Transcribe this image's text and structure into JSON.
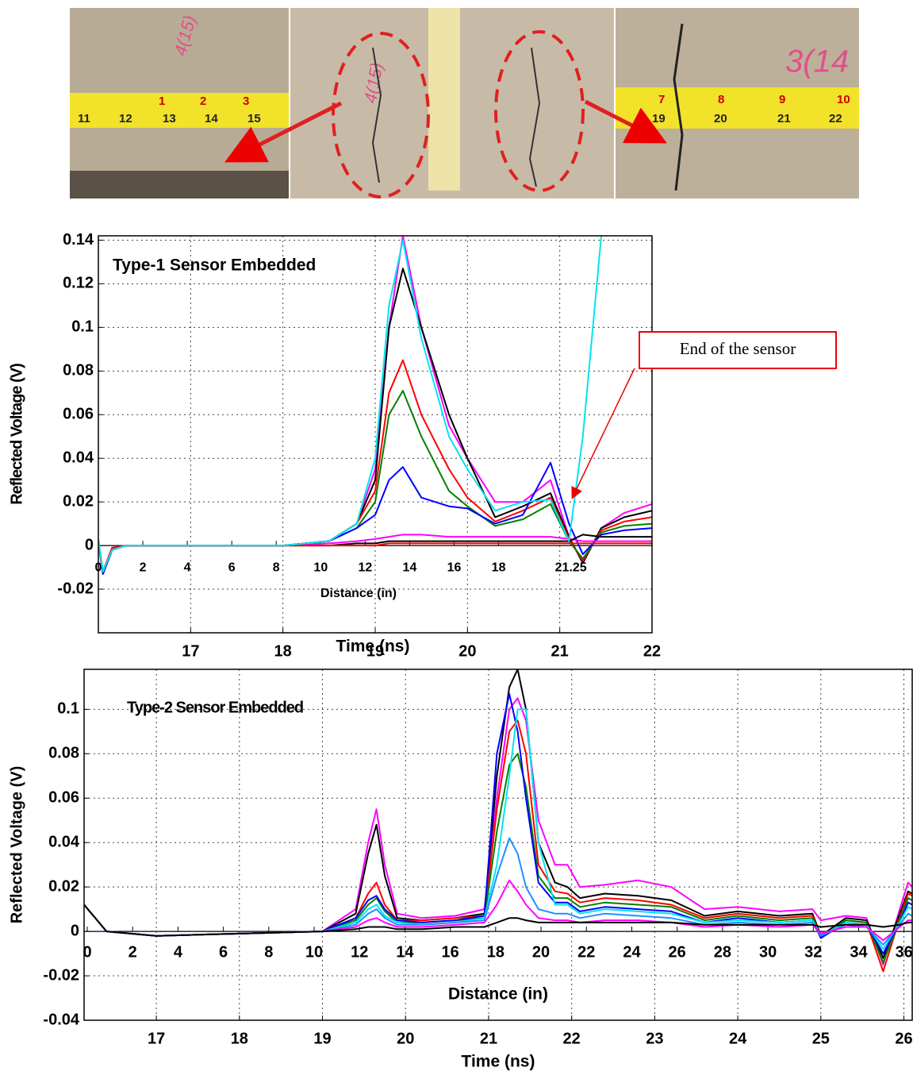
{
  "photo": {
    "left_tape": [
      "11",
      "12",
      "13",
      "14",
      "15"
    ],
    "left_tape_small": [
      "1",
      "2",
      "3"
    ],
    "left_mark": "4(15)",
    "middle_mark": "4(15)",
    "right_tape": [
      "19",
      "20",
      "21",
      "22"
    ],
    "right_tape_small": [
      "7",
      "8",
      "9",
      "10"
    ],
    "right_mark": "3(14"
  },
  "chart_data": [
    {
      "type": "line",
      "title": "Type-1 Sensor Embedded",
      "x_label": "Time (ns)",
      "y_label": "Reflected Voltage (V)",
      "x2_label": "Distance (in)",
      "annotation": "End of the sensor",
      "xlim": [
        16,
        22
      ],
      "xticks": [
        17,
        18,
        19,
        20,
        21,
        22
      ],
      "x2lim": [
        0,
        24.9
      ],
      "x2ticks": [
        0,
        2,
        4,
        6,
        8,
        10,
        12,
        14,
        16,
        18,
        21.25
      ],
      "ylim": [
        -0.04,
        0.142
      ],
      "yticks": [
        -0.02,
        0,
        0.02,
        0.04,
        0.06,
        0.08,
        0.1,
        0.12,
        0.14
      ],
      "grid": true,
      "x": [
        16.0,
        16.05,
        16.15,
        16.3,
        16.6,
        17.0,
        17.5,
        18.0,
        18.5,
        18.8,
        19.0,
        19.15,
        19.3,
        19.5,
        19.8,
        20.0,
        20.3,
        20.6,
        20.9,
        21.1,
        21.25,
        21.45,
        21.7,
        22.0
      ],
      "series": [
        {
          "color": "#ff00ff",
          "values": [
            0.002,
            -0.013,
            -0.002,
            0,
            0,
            0,
            0,
            0,
            0.002,
            0.01,
            0.035,
            0.1,
            0.142,
            0.1,
            0.055,
            0.04,
            0.02,
            0.02,
            0.03,
            0.004,
            -0.008,
            0.008,
            0.015,
            0.019
          ]
        },
        {
          "color": "#000000",
          "values": [
            0.002,
            -0.013,
            -0.002,
            0,
            0,
            0,
            0,
            0,
            0.002,
            0.01,
            0.03,
            0.1,
            0.127,
            0.1,
            0.06,
            0.04,
            0.013,
            0.018,
            0.024,
            0.004,
            -0.008,
            0.008,
            0.013,
            0.016
          ]
        },
        {
          "color": "#ff0000",
          "values": [
            0.002,
            -0.013,
            -0.002,
            0,
            0,
            0,
            0,
            0,
            0.002,
            0.01,
            0.025,
            0.07,
            0.085,
            0.06,
            0.035,
            0.022,
            0.011,
            0.016,
            0.022,
            0.003,
            -0.007,
            0.007,
            0.011,
            0.013
          ]
        },
        {
          "color": "#008000",
          "values": [
            0.002,
            -0.013,
            -0.002,
            0,
            0,
            0,
            0,
            0,
            0.002,
            0.008,
            0.02,
            0.06,
            0.071,
            0.05,
            0.025,
            0.018,
            0.009,
            0.012,
            0.019,
            0.002,
            -0.006,
            0.006,
            0.009,
            0.01
          ]
        },
        {
          "color": "#0000ff",
          "values": [
            0.002,
            -0.013,
            -0.002,
            0,
            0,
            0,
            0,
            0,
            0.002,
            0.008,
            0.014,
            0.03,
            0.036,
            0.022,
            0.018,
            0.017,
            0.01,
            0.014,
            0.038,
            0.01,
            -0.004,
            0.005,
            0.007,
            0.008
          ]
        },
        {
          "color": "#ff00ff",
          "values": [
            0.002,
            -0.012,
            -0.001,
            0,
            0,
            0,
            0,
            0,
            0.001,
            0.002,
            0.003,
            0.004,
            0.005,
            0.005,
            0.004,
            0.004,
            0.004,
            0.004,
            0.004,
            0.003,
            0.002,
            0.002,
            0.002,
            0.002
          ]
        },
        {
          "color": "#000000",
          "values": [
            0.002,
            -0.012,
            -0.001,
            0,
            0,
            0,
            0,
            0,
            0,
            0.001,
            0.001,
            0.002,
            0.002,
            0.002,
            0.002,
            0.002,
            0.002,
            0.002,
            0.002,
            0.002,
            0.005,
            0.004,
            0.004,
            0.004
          ]
        },
        {
          "color": "#ff0000",
          "values": [
            0.001,
            -0.012,
            -0.001,
            0,
            0,
            0,
            0,
            0,
            0,
            0,
            0,
            0.001,
            0.001,
            0.001,
            0.001,
            0.001,
            0.001,
            0.001,
            0.001,
            0.001,
            0.001,
            0.001,
            0.001,
            0.001
          ]
        },
        {
          "color": "#00e5ee",
          "values": [
            0.003,
            -0.012,
            -0.002,
            0,
            0,
            0,
            0,
            0,
            0.002,
            0.01,
            0.04,
            0.11,
            0.14,
            0.095,
            0.05,
            0.035,
            0.016,
            0.02,
            0.021,
            0.002,
            0.05,
            0.142,
            null,
            null
          ]
        }
      ]
    },
    {
      "type": "line",
      "title": "Type-2 Sensor Embedded",
      "x_label": "Time (ns)",
      "y_label": "Reflected Voltage (V)",
      "x2_label": "Distance (in)",
      "xlim": [
        16.13,
        26.1
      ],
      "xticks": [
        17,
        18,
        19,
        20,
        21,
        22,
        23,
        24,
        25,
        26
      ],
      "x2lim": [
        -0.14,
        36.36
      ],
      "x2ticks": [
        0,
        2,
        4,
        6,
        8,
        10,
        12,
        14,
        16,
        18,
        20,
        22,
        24,
        26,
        28,
        30,
        32,
        34,
        36
      ],
      "ylim": [
        -0.04,
        0.118
      ],
      "yticks": [
        -0.04,
        -0.02,
        0,
        0.02,
        0.04,
        0.06,
        0.08,
        0.1
      ],
      "grid": true,
      "x": [
        16.13,
        16.4,
        17,
        18,
        19,
        19.4,
        19.55,
        19.65,
        19.75,
        19.9,
        20.2,
        20.6,
        20.95,
        21.1,
        21.25,
        21.35,
        21.45,
        21.6,
        21.8,
        21.95,
        22.1,
        22.4,
        22.8,
        23.2,
        23.6,
        24.0,
        24.5,
        24.9,
        25.0,
        25.3,
        25.55,
        25.75,
        25.95,
        26.05,
        26.1
      ],
      "series": [
        {
          "color": "#ff00ff",
          "values": [
            0.012,
            0,
            -0.002,
            -0.001,
            0,
            0.01,
            0.04,
            0.055,
            0.03,
            0.008,
            0.006,
            0.007,
            0.01,
            0.06,
            0.1,
            0.105,
            0.095,
            0.05,
            0.03,
            0.03,
            0.02,
            0.021,
            0.023,
            0.02,
            0.01,
            0.011,
            0.009,
            0.01,
            0.005,
            0.007,
            0.006,
            -0.015,
            0.01,
            0.022,
            0.02
          ]
        },
        {
          "color": "#000000",
          "values": [
            0.012,
            0,
            -0.002,
            -0.001,
            0,
            0.008,
            0.035,
            0.048,
            0.025,
            0.006,
            0.005,
            0.006,
            0.008,
            0.07,
            0.11,
            0.118,
            0.1,
            0.04,
            0.022,
            0.02,
            0.015,
            0.017,
            0.016,
            0.014,
            0.007,
            0.009,
            0.007,
            0.008,
            -0.002,
            0.006,
            0.005,
            -0.012,
            0.008,
            0.018,
            0.017
          ]
        },
        {
          "color": "#ff0000",
          "values": [
            0.012,
            0,
            -0.002,
            -0.001,
            0,
            0.006,
            0.017,
            0.022,
            0.012,
            0.005,
            0.005,
            0.006,
            0.007,
            0.055,
            0.09,
            0.095,
            0.08,
            0.03,
            0.018,
            0.017,
            0.013,
            0.015,
            0.014,
            0.012,
            0.006,
            0.008,
            0.006,
            0.007,
            -0.003,
            0.005,
            0.004,
            -0.018,
            0.006,
            0.017,
            0.016
          ]
        },
        {
          "color": "#008000",
          "values": [
            0.012,
            0,
            -0.002,
            -0.001,
            0,
            0.005,
            0.012,
            0.015,
            0.009,
            0.004,
            0.004,
            0.005,
            0.006,
            0.045,
            0.075,
            0.08,
            0.065,
            0.025,
            0.015,
            0.015,
            0.011,
            0.013,
            0.012,
            0.011,
            0.005,
            0.007,
            0.005,
            0.006,
            -0.003,
            0.005,
            0.004,
            -0.014,
            0.005,
            0.015,
            0.014
          ]
        },
        {
          "color": "#0000ff",
          "values": [
            0.012,
            0,
            -0.002,
            -0.001,
            0,
            0.006,
            0.014,
            0.016,
            0.01,
            0.005,
            0.004,
            0.005,
            0.007,
            0.08,
            0.107,
            0.09,
            0.06,
            0.022,
            0.013,
            0.013,
            0.009,
            0.011,
            0.01,
            0.009,
            0.004,
            0.006,
            0.004,
            0.005,
            -0.003,
            0.004,
            0.003,
            -0.01,
            0.004,
            0.013,
            0.012
          ]
        },
        {
          "color": "#00e5ee",
          "values": [
            0.012,
            0,
            -0.002,
            -0.001,
            0,
            0.004,
            0.01,
            0.012,
            0.007,
            0.004,
            0.003,
            0.004,
            0.006,
            0.03,
            0.07,
            0.1,
            0.1,
            0.04,
            0.012,
            0.012,
            0.008,
            0.01,
            0.009,
            0.008,
            0.004,
            0.005,
            0.004,
            0.005,
            -0.002,
            0.004,
            0.003,
            -0.008,
            0.004,
            0.011,
            0.01
          ]
        },
        {
          "color": "#1e90ff",
          "values": [
            0.012,
            0,
            -0.002,
            -0.001,
            0,
            0.003,
            0.008,
            0.01,
            0.006,
            0.003,
            0.003,
            0.004,
            0.005,
            0.025,
            0.042,
            0.035,
            0.02,
            0.01,
            0.008,
            0.008,
            0.006,
            0.008,
            0.007,
            0.006,
            0.003,
            0.004,
            0.003,
            0.004,
            -0.002,
            0.003,
            0.002,
            -0.006,
            0.003,
            0.008,
            0.007
          ]
        },
        {
          "color": "#ff00ff",
          "values": [
            0.012,
            0,
            -0.002,
            -0.001,
            0,
            0.002,
            0.005,
            0.006,
            0.004,
            0.002,
            0.002,
            0.003,
            0.004,
            0.012,
            0.023,
            0.018,
            0.012,
            0.006,
            0.005,
            0.005,
            0.004,
            0.005,
            0.005,
            0.004,
            0.002,
            0.003,
            0.002,
            0.003,
            -0.001,
            0.002,
            0.002,
            -0.004,
            0.002,
            0.005,
            0.005
          ]
        },
        {
          "color": "#000000",
          "values": [
            0.012,
            0,
            -0.002,
            -0.001,
            0,
            0.001,
            0.002,
            0.002,
            0.002,
            0.001,
            0.001,
            0.002,
            0.002,
            0.004,
            0.006,
            0.006,
            0.005,
            0.004,
            0.004,
            0.004,
            0.004,
            0.004,
            0.004,
            0.004,
            0.003,
            0.003,
            0.003,
            0.003,
            0.002,
            0.003,
            0.003,
            0.002,
            0.003,
            0.004,
            0.004
          ]
        }
      ]
    }
  ]
}
